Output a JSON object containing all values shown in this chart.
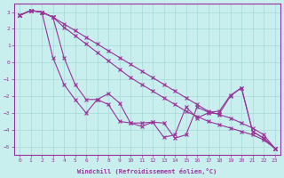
{
  "xlabel": "Windchill (Refroidissement éolien,°C)",
  "xlim": [
    -0.5,
    23.5
  ],
  "ylim": [
    -5.5,
    3.5
  ],
  "yticks": [
    3,
    2,
    1,
    0,
    -1,
    -2,
    -3,
    -4,
    -5
  ],
  "xticks": [
    0,
    1,
    2,
    3,
    4,
    5,
    6,
    7,
    8,
    9,
    10,
    11,
    12,
    13,
    14,
    15,
    16,
    17,
    18,
    19,
    20,
    21,
    22,
    23
  ],
  "bg_color": "#c8eeee",
  "grid_color": "#a8d8d8",
  "line_color": "#993399",
  "line_straight1": {
    "x": [
      0,
      1,
      2,
      3,
      4,
      5,
      6,
      7,
      8,
      9,
      10,
      11,
      12,
      13,
      14,
      15,
      16,
      17,
      18,
      19,
      20,
      21,
      22,
      23
    ],
    "y": [
      2.8,
      3.1,
      3.0,
      2.7,
      2.3,
      1.9,
      1.5,
      1.1,
      0.7,
      0.3,
      -0.1,
      -0.5,
      -0.9,
      -1.3,
      -1.7,
      -2.1,
      -2.5,
      -2.9,
      -3.1,
      -3.3,
      -3.6,
      -3.9,
      -4.3,
      -5.1
    ]
  },
  "line_straight2": {
    "x": [
      0,
      1,
      2,
      3,
      4,
      5,
      6,
      7,
      8,
      9,
      10,
      11,
      12,
      13,
      14,
      15,
      16,
      17,
      18,
      19,
      20,
      21,
      22,
      23
    ],
    "y": [
      2.8,
      3.1,
      3.0,
      2.7,
      2.1,
      1.6,
      1.1,
      0.6,
      0.1,
      -0.4,
      -0.9,
      -1.3,
      -1.7,
      -2.1,
      -2.5,
      -2.9,
      -3.2,
      -3.5,
      -3.7,
      -3.9,
      -4.1,
      -4.3,
      -4.6,
      -5.1
    ]
  },
  "line_jagged": {
    "x": [
      0,
      1,
      2,
      3,
      4,
      5,
      6,
      7,
      8,
      9,
      10,
      11,
      12,
      13,
      14,
      15,
      16,
      17,
      18,
      19,
      20,
      21,
      22,
      23
    ],
    "y": [
      2.8,
      3.1,
      3.0,
      2.7,
      0.3,
      -1.3,
      -2.2,
      -2.2,
      -1.85,
      -2.4,
      -3.6,
      -3.6,
      -3.55,
      -3.6,
      -4.5,
      -4.3,
      -2.65,
      -2.95,
      -2.9,
      -1.95,
      -1.5,
      -4.1,
      -4.5,
      -5.1
    ]
  },
  "line_steep": {
    "x": [
      0,
      1,
      2,
      3,
      4,
      5,
      6,
      7,
      8,
      9,
      10,
      11,
      12,
      13,
      14,
      15,
      16,
      17,
      18,
      19,
      20,
      21,
      22,
      23
    ],
    "y": [
      2.8,
      3.1,
      3.0,
      0.3,
      -1.3,
      -2.2,
      -3.0,
      -2.2,
      -2.5,
      -3.5,
      -3.6,
      -3.8,
      -3.55,
      -4.45,
      -4.3,
      -2.65,
      -3.3,
      -3.0,
      -3.05,
      -2.0,
      -1.5,
      -4.1,
      -4.5,
      -5.1
    ]
  }
}
